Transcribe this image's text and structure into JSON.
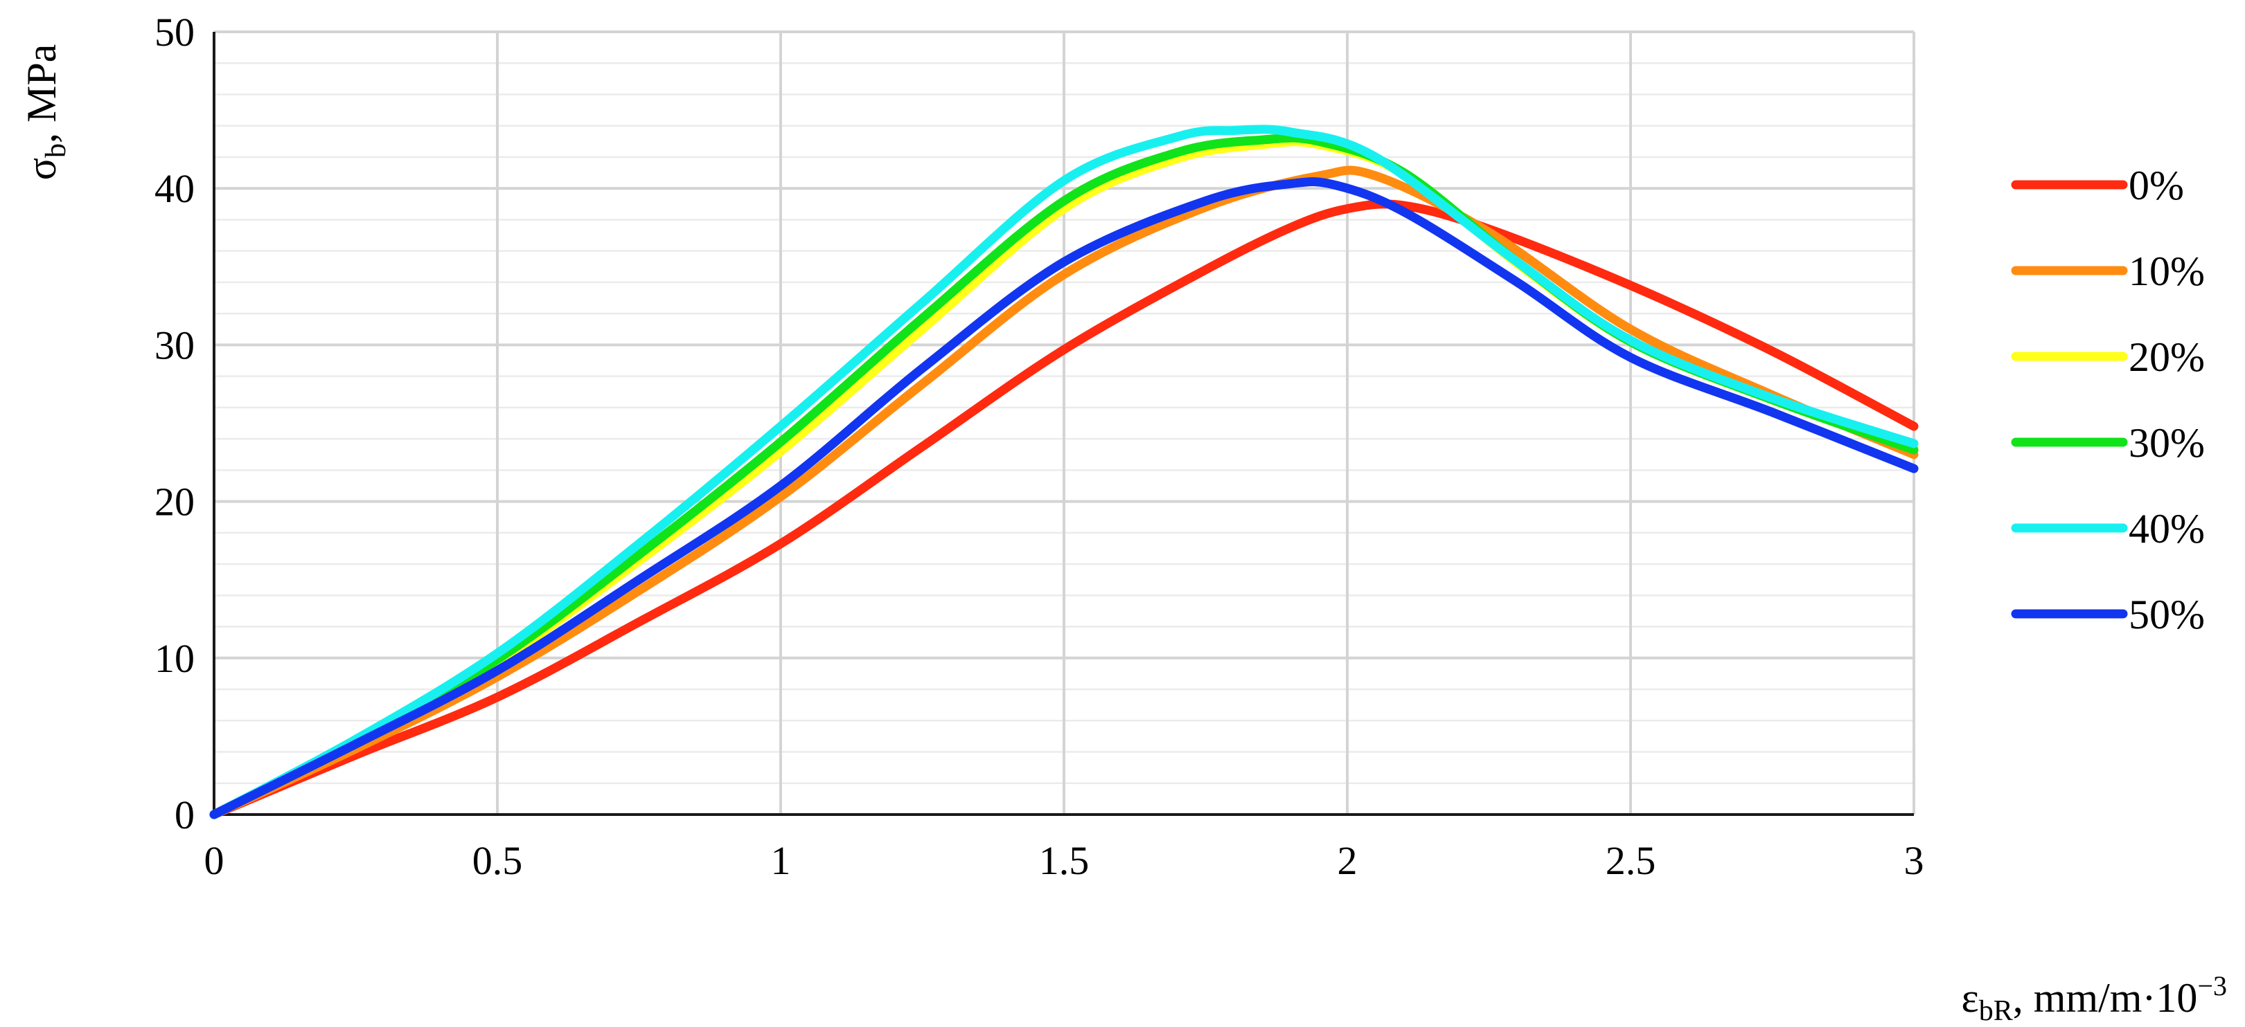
{
  "chart_data": {
    "type": "line",
    "xlabel": "ε",
    "xlabel_sub": "bR",
    "xlabel_rest": ", mm/m·10",
    "xlabel_sup": "−3",
    "ylabel": "σ",
    "ylabel_sub": "b",
    "ylabel_rest": ", MPa",
    "xlim": [
      0,
      3
    ],
    "ylim": [
      0,
      50
    ],
    "x_ticks": [
      0,
      0.5,
      1,
      1.5,
      2,
      2.5,
      3
    ],
    "x_tick_labels": [
      "0",
      "0.5",
      "1",
      "1.5",
      "2",
      "2.5",
      "3"
    ],
    "y_ticks": [
      0,
      10,
      20,
      30,
      40,
      50
    ],
    "y_tick_labels": [
      "0",
      "10",
      "20",
      "30",
      "40",
      "50"
    ],
    "y_minor_step": 2,
    "grid": true,
    "legend_position": "right",
    "series": [
      {
        "name": "0%",
        "color": "#ff2a0f",
        "x": [
          0,
          0.25,
          0.5,
          0.75,
          1.0,
          1.25,
          1.5,
          1.75,
          1.9,
          2.0,
          2.1,
          2.25,
          2.5,
          2.75,
          3.0
        ],
        "y": [
          0,
          3.8,
          7.5,
          12.3,
          17.3,
          23.5,
          29.7,
          34.8,
          37.5,
          38.7,
          38.9,
          37.4,
          33.8,
          29.6,
          24.8
        ]
      },
      {
        "name": "10%",
        "color": "#ff8c10",
        "x": [
          0,
          0.25,
          0.5,
          0.75,
          1.0,
          1.25,
          1.5,
          1.75,
          1.95,
          2.05,
          2.25,
          2.5,
          2.75,
          3.0
        ],
        "y": [
          0,
          4.2,
          8.8,
          14.3,
          20.3,
          27.5,
          34.5,
          38.8,
          40.8,
          40.8,
          37.2,
          31.0,
          26.8,
          23.0
        ]
      },
      {
        "name": "20%",
        "color": "#ffff1a",
        "x": [
          0,
          0.25,
          0.5,
          0.75,
          1.0,
          1.25,
          1.5,
          1.7,
          1.85,
          1.95,
          2.1,
          2.3,
          2.5,
          2.75,
          3.0
        ],
        "y": [
          0,
          4.6,
          9.7,
          16.2,
          23.2,
          31.0,
          38.7,
          41.9,
          42.8,
          42.8,
          40.9,
          35.2,
          30.2,
          26.5,
          23.5
        ]
      },
      {
        "name": "30%",
        "color": "#10e31a",
        "x": [
          0,
          0.25,
          0.5,
          0.75,
          1.0,
          1.25,
          1.5,
          1.7,
          1.85,
          1.95,
          2.1,
          2.3,
          2.5,
          2.75,
          3.0
        ],
        "y": [
          0,
          4.7,
          9.9,
          16.6,
          23.8,
          31.7,
          39.2,
          42.3,
          43.1,
          43.0,
          41.0,
          35.3,
          30.2,
          26.5,
          23.3
        ]
      },
      {
        "name": "40%",
        "color": "#18f0f0",
        "x": [
          0,
          0.25,
          0.5,
          0.75,
          1.0,
          1.25,
          1.5,
          1.7,
          1.8,
          1.9,
          2.05,
          2.3,
          2.5,
          2.75,
          3.0
        ],
        "y": [
          0,
          4.8,
          10.3,
          17.3,
          24.8,
          32.7,
          40.5,
          43.3,
          43.7,
          43.6,
          42.0,
          35.3,
          30.3,
          26.6,
          23.7
        ]
      },
      {
        "name": "50%",
        "color": "#1235f0",
        "x": [
          0,
          0.25,
          0.5,
          0.75,
          1.0,
          1.25,
          1.5,
          1.75,
          1.9,
          1.98,
          2.1,
          2.3,
          2.5,
          2.75,
          3.0
        ],
        "y": [
          0,
          4.5,
          9.2,
          15.0,
          21.0,
          28.5,
          35.3,
          39.2,
          40.3,
          40.2,
          38.5,
          34.0,
          29.2,
          25.7,
          22.1
        ]
      }
    ]
  }
}
